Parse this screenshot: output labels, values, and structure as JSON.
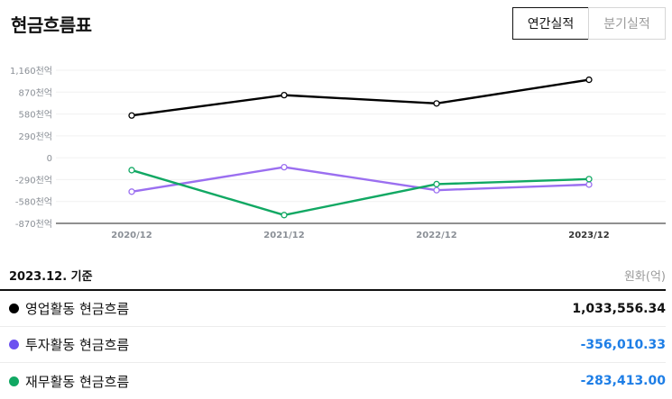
{
  "header": {
    "title": "현금흐름표",
    "tabs": [
      {
        "label": "연간실적",
        "active": true
      },
      {
        "label": "분기실적",
        "active": false
      }
    ]
  },
  "summary": {
    "basis": "2023.12. 기준",
    "unit": "원화(억)"
  },
  "colors": {
    "operating": "#000000",
    "investing": "#9b6ff0",
    "financing": "#11a863",
    "negative_value": "#1e7ee6"
  },
  "chart_data": {
    "type": "line",
    "categories": [
      "2020/12",
      "2021/12",
      "2022/12",
      "2023/12"
    ],
    "y_tick_labels": [
      "1,160천억",
      "870천억",
      "580천억",
      "290천억",
      "0",
      "-290천억",
      "-580천억",
      "-870천억"
    ],
    "y_tick_values": [
      1160,
      870,
      580,
      290,
      0,
      -290,
      -580,
      -870
    ],
    "ylim": [
      -870,
      1160
    ],
    "y_unit": "천억",
    "grid": true,
    "legend_position": "bottom",
    "series": [
      {
        "name": "영업활동 현금흐름",
        "color": "#000000",
        "values": [
          560,
          830,
          720,
          1034
        ]
      },
      {
        "name": "투자활동 현금흐름",
        "color": "#9b6ff0",
        "values": [
          -450,
          -125,
          -430,
          -356
        ]
      },
      {
        "name": "재무활동 현금흐름",
        "color": "#11a863",
        "values": [
          -165,
          -760,
          -350,
          -283
        ]
      }
    ]
  },
  "legend": [
    {
      "label": "영업활동 현금흐름",
      "value": "1,033,556.34",
      "color": "#000000",
      "value_color": "#111111"
    },
    {
      "label": "투자활동 현금흐름",
      "value": "-356,010.33",
      "color": "#6c52f0",
      "value_color": "#1e7ee6"
    },
    {
      "label": "재무활동 현금흐름",
      "value": "-283,413.00",
      "color": "#11a863",
      "value_color": "#1e7ee6"
    }
  ]
}
